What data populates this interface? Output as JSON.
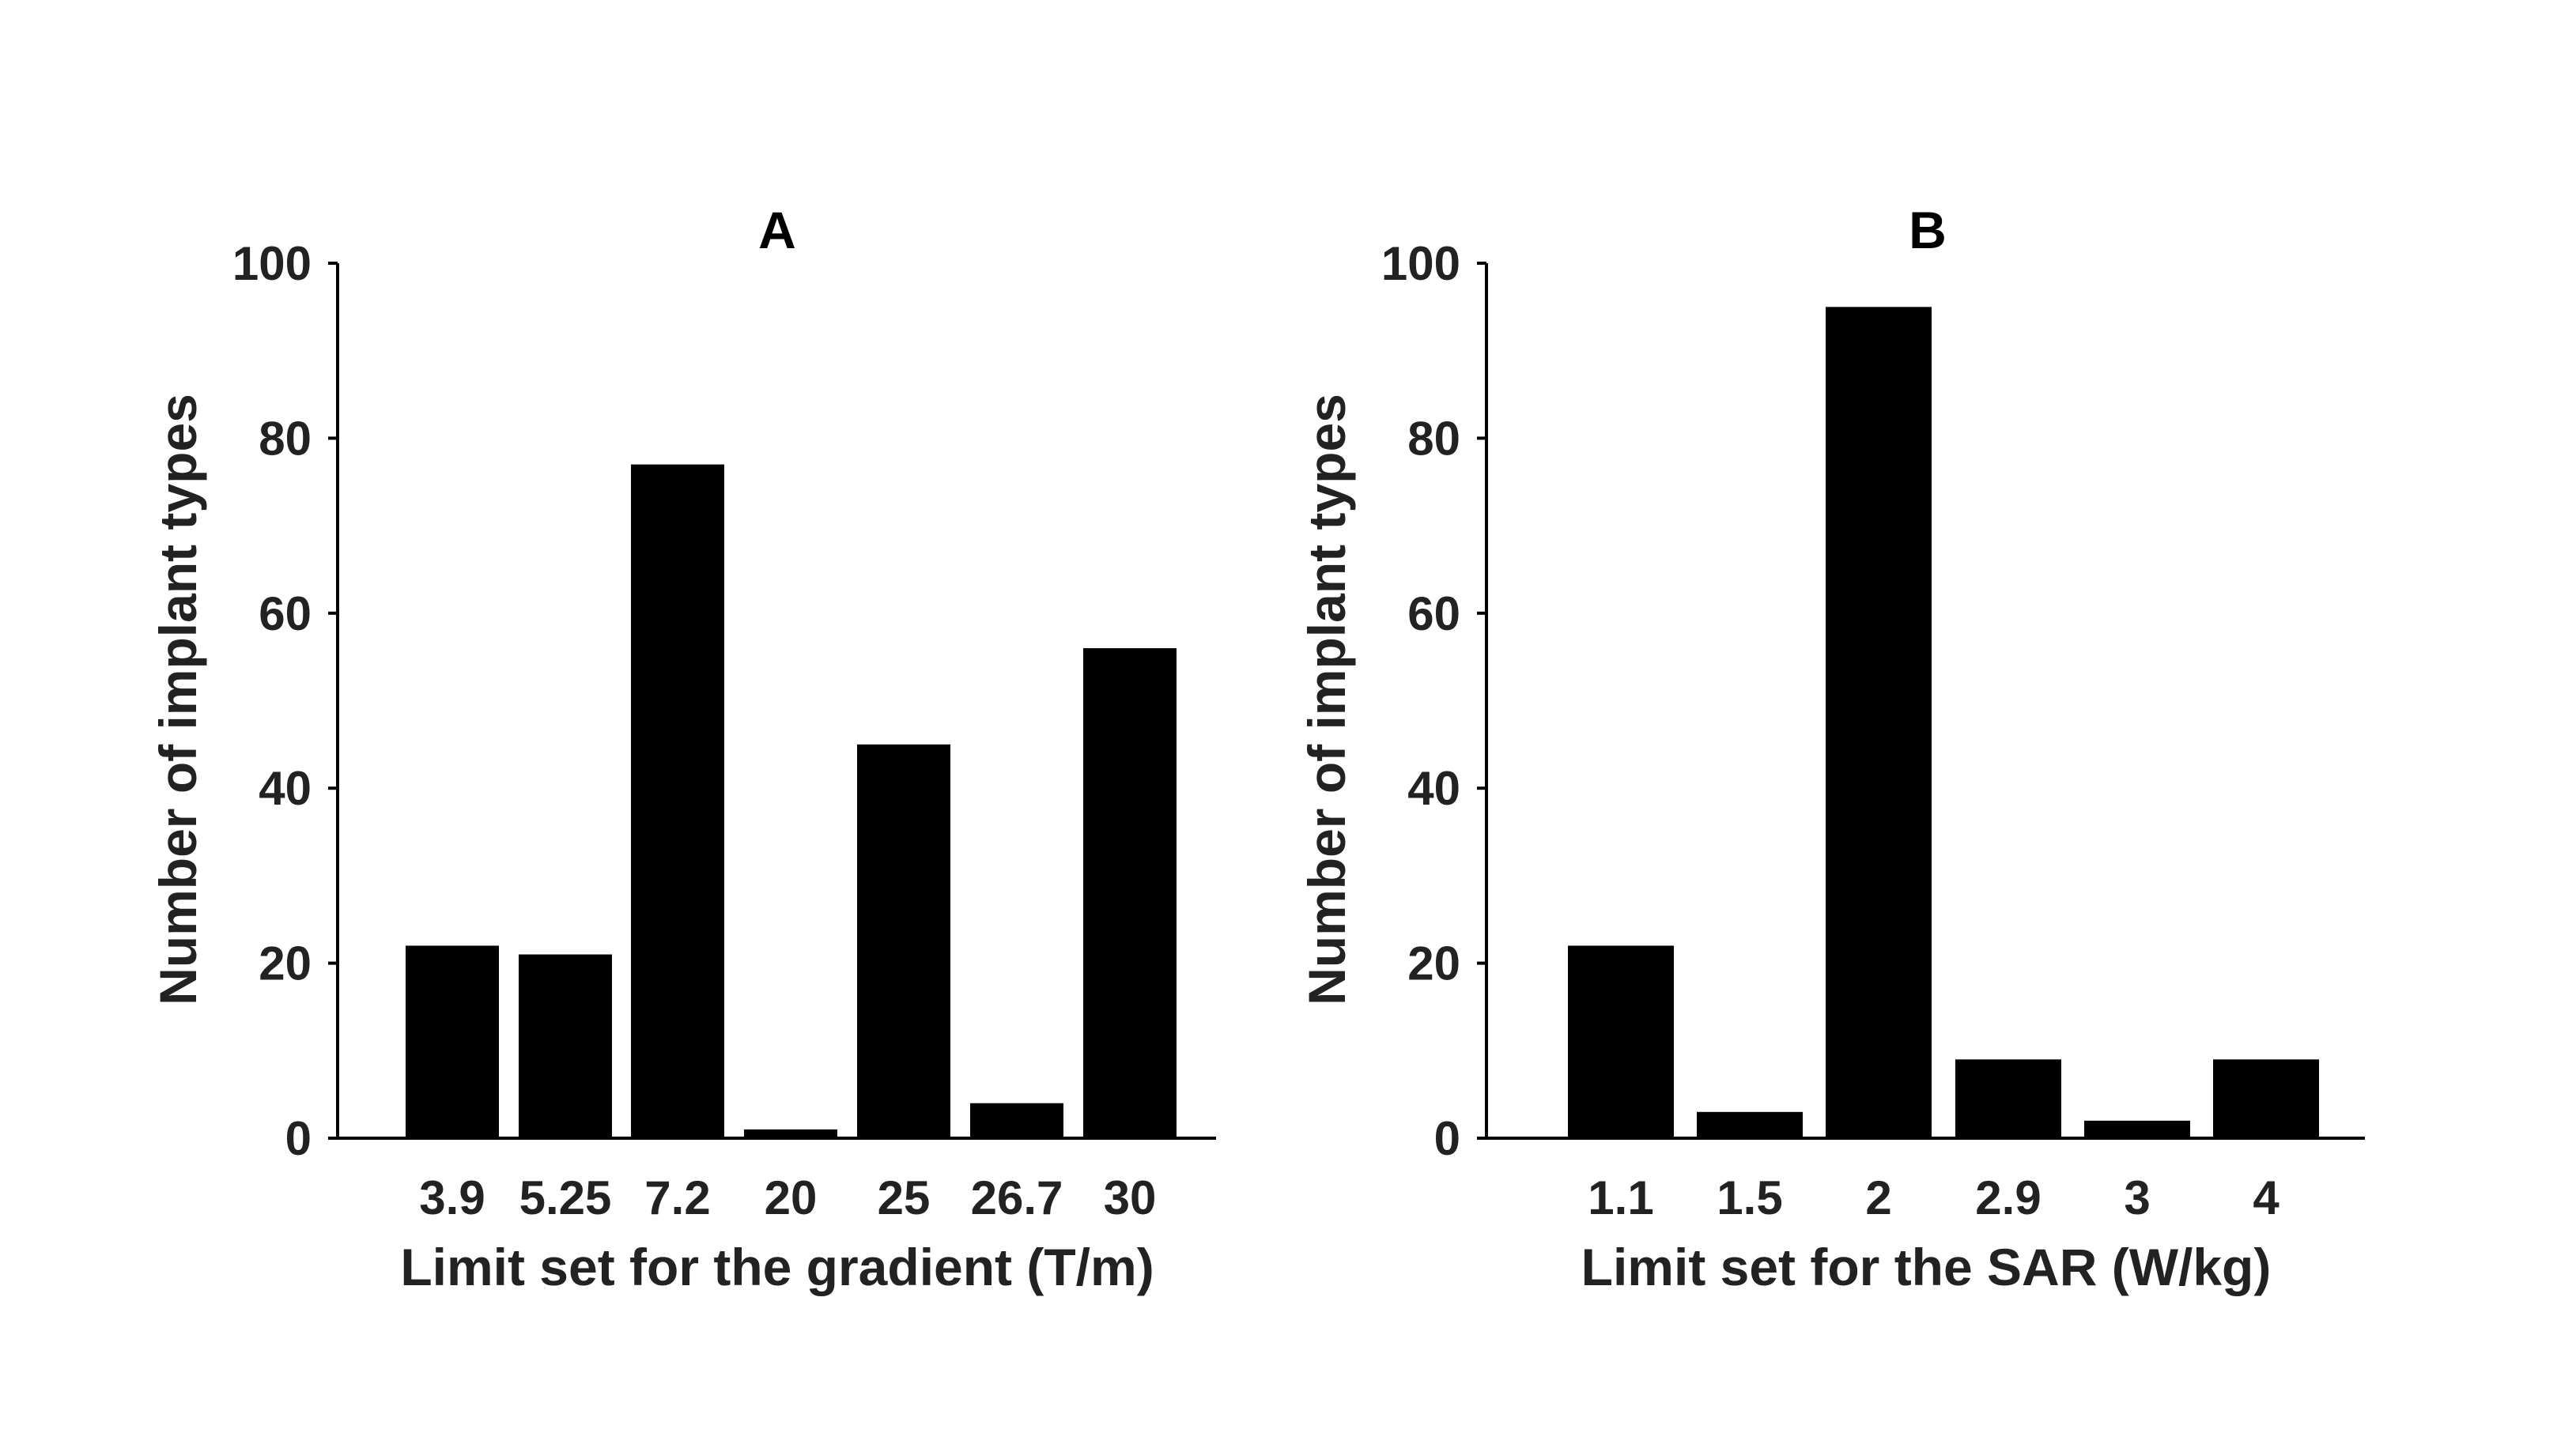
{
  "chart_data": [
    {
      "type": "bar",
      "title": "A",
      "xlabel": "Limit set for the gradient (T/m)",
      "ylabel": "Number of implant types",
      "categories": [
        "3.9",
        "5.25",
        "7.2",
        "20",
        "25",
        "26.7",
        "30"
      ],
      "values": [
        22,
        21,
        77,
        1,
        45,
        4,
        56
      ],
      "ylim": [
        0,
        100
      ],
      "yticks": [
        0,
        20,
        40,
        60,
        80,
        100
      ],
      "bar_color": "#000000",
      "grid": false,
      "legend": false
    },
    {
      "type": "bar",
      "title": "B",
      "xlabel": "Limit set for the SAR (W/kg)",
      "ylabel": "Number of implant types",
      "categories": [
        "1.1",
        "1.5",
        "2",
        "2.9",
        "3",
        "4"
      ],
      "values": [
        22,
        3,
        95,
        9,
        2,
        9
      ],
      "ylim": [
        0,
        100
      ],
      "yticks": [
        0,
        20,
        40,
        60,
        80,
        100
      ],
      "bar_color": "#000000",
      "grid": false,
      "legend": false
    }
  ]
}
